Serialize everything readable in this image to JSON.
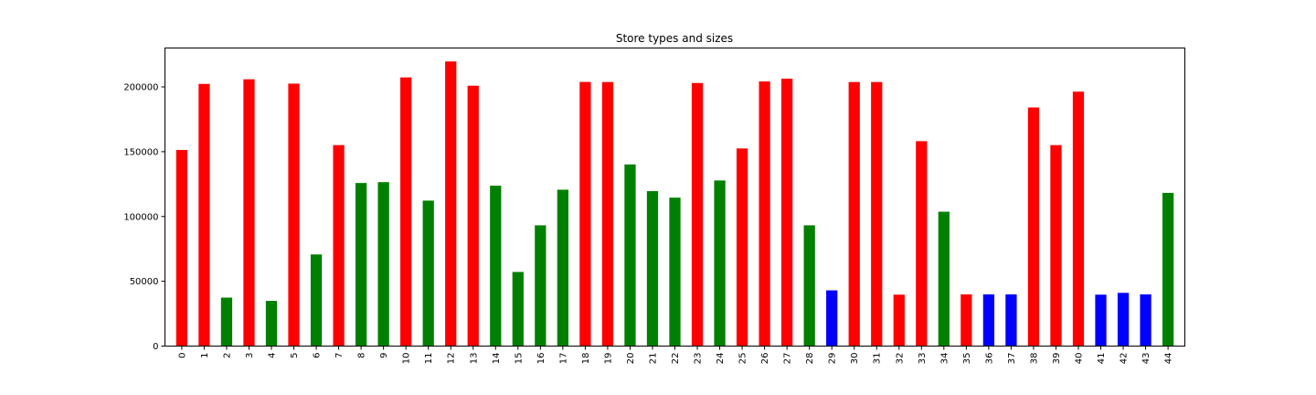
{
  "chart_data": {
    "type": "bar",
    "title": "Store types and sizes",
    "xlabel": "",
    "ylabel": "",
    "ylim": [
      0,
      230000
    ],
    "yticks": [
      0,
      50000,
      100000,
      150000,
      200000
    ],
    "ytick_labels": [
      "0",
      "50000",
      "100000",
      "150000",
      "200000"
    ],
    "grid": false,
    "categories": [
      "0",
      "1",
      "2",
      "3",
      "4",
      "5",
      "6",
      "7",
      "8",
      "9",
      "10",
      "11",
      "12",
      "13",
      "14",
      "15",
      "16",
      "17",
      "18",
      "19",
      "20",
      "21",
      "22",
      "23",
      "24",
      "25",
      "26",
      "27",
      "28",
      "29",
      "30",
      "31",
      "32",
      "33",
      "34",
      "35",
      "36",
      "37",
      "38",
      "39",
      "40",
      "41",
      "42",
      "43",
      "44"
    ],
    "values": [
      151315,
      202307,
      37392,
      205863,
      34875,
      202505,
      70713,
      155078,
      125833,
      126512,
      207315,
      112238,
      219622,
      200898,
      123737,
      57197,
      93188,
      120653,
      203819,
      203742,
      140167,
      119557,
      114533,
      203007,
      127792,
      152513,
      204184,
      206302,
      93188,
      42988,
      203750,
      203750,
      39690,
      158114,
      103681,
      39910,
      39910,
      39910,
      184109,
      155083,
      196321,
      39690,
      41062,
      39910,
      118221
    ],
    "bar_colors": [
      "#ff0000",
      "#ff0000",
      "#008000",
      "#ff0000",
      "#008000",
      "#ff0000",
      "#008000",
      "#ff0000",
      "#008000",
      "#008000",
      "#ff0000",
      "#008000",
      "#ff0000",
      "#ff0000",
      "#008000",
      "#008000",
      "#008000",
      "#008000",
      "#ff0000",
      "#ff0000",
      "#008000",
      "#008000",
      "#008000",
      "#ff0000",
      "#008000",
      "#ff0000",
      "#ff0000",
      "#ff0000",
      "#008000",
      "#0000ff",
      "#ff0000",
      "#ff0000",
      "#ff0000",
      "#ff0000",
      "#008000",
      "#ff0000",
      "#0000ff",
      "#0000ff",
      "#ff0000",
      "#ff0000",
      "#ff0000",
      "#0000ff",
      "#0000ff",
      "#0000ff",
      "#008000"
    ]
  }
}
